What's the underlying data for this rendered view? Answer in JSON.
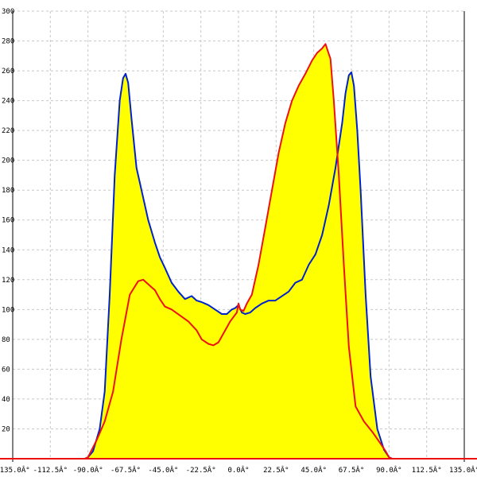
{
  "chart_data": {
    "type": "area",
    "title": "",
    "xlabel": "",
    "ylabel": "",
    "xlim": [
      -135,
      135
    ],
    "ylim": [
      0,
      300
    ],
    "grid": true,
    "x_ticks": [
      {
        "value": -135.0,
        "label": "-135.0Â°"
      },
      {
        "value": -112.5,
        "label": "-112.5Â°"
      },
      {
        "value": -90.0,
        "label": "-90.0Â°"
      },
      {
        "value": -67.5,
        "label": "-67.5Â°"
      },
      {
        "value": -45.0,
        "label": "-45.0Â°"
      },
      {
        "value": -22.5,
        "label": "-22.5Â°"
      },
      {
        "value": 0.0,
        "label": "0.0Â°"
      },
      {
        "value": 22.5,
        "label": "22.5Â°"
      },
      {
        "value": 45.0,
        "label": "45.0Â°"
      },
      {
        "value": 67.5,
        "label": "67.5Â°"
      },
      {
        "value": 90.0,
        "label": "90.0Â°"
      },
      {
        "value": 112.5,
        "label": "112.5Â°"
      },
      {
        "value": 135.0,
        "label": "135.0Â°"
      }
    ],
    "y_ticks": [
      {
        "value": 20,
        "label": "20"
      },
      {
        "value": 40,
        "label": "40"
      },
      {
        "value": 60,
        "label": "60"
      },
      {
        "value": 80,
        "label": "80"
      },
      {
        "value": 100,
        "label": "100"
      },
      {
        "value": 120,
        "label": "120"
      },
      {
        "value": 140,
        "label": "140"
      },
      {
        "value": 160,
        "label": "160"
      },
      {
        "value": 180,
        "label": "180"
      },
      {
        "value": 200,
        "label": "200"
      },
      {
        "value": 220,
        "label": "220"
      },
      {
        "value": 240,
        "label": "240"
      },
      {
        "value": 260,
        "label": "260"
      },
      {
        "value": 280,
        "label": "280"
      },
      {
        "value": 300,
        "label": "300"
      }
    ],
    "colors": {
      "fill": "#ffff00",
      "blue_series": "#0022cc",
      "red_series": "#ee1111",
      "grid": "#c8c8c8",
      "axis": "#000000"
    },
    "series": [
      {
        "color": "blue",
        "x": [
          -135,
          -92,
          -90,
          -87,
          -83,
          -80,
          -77,
          -74,
          -71,
          -69,
          -67.5,
          -66,
          -64,
          -61,
          -58,
          -54,
          -50,
          -47,
          -44,
          -40,
          -36,
          -32,
          -28,
          -25,
          -22,
          -18,
          -14,
          -10,
          -7,
          -4,
          -2,
          0,
          2,
          4,
          7,
          10,
          14,
          18,
          22,
          26,
          30,
          34,
          38,
          42,
          46,
          50,
          54,
          58,
          62,
          64,
          66,
          67.5,
          69,
          71,
          73,
          76,
          79,
          83,
          87,
          90,
          92,
          135
        ],
        "y": [
          0,
          0,
          1,
          5,
          20,
          45,
          110,
          190,
          240,
          255,
          258,
          252,
          228,
          195,
          180,
          160,
          145,
          135,
          128,
          118,
          112,
          107,
          109,
          106,
          105,
          103,
          100,
          97,
          97,
          100,
          101,
          103,
          98,
          97,
          98,
          101,
          104,
          106,
          106,
          109,
          112,
          118,
          120,
          130,
          137,
          150,
          170,
          195,
          225,
          245,
          257,
          259,
          250,
          220,
          180,
          110,
          55,
          20,
          6,
          1,
          0,
          0
        ]
      },
      {
        "color": "red",
        "x": [
          -135,
          -92,
          -90,
          -85,
          -80,
          -75,
          -70,
          -65,
          -60,
          -57,
          -55,
          -52,
          -50,
          -47,
          -44,
          -40,
          -35,
          -30,
          -25,
          -22,
          -18,
          -15,
          -12,
          -10,
          -7,
          -5,
          -3,
          -1,
          0,
          1,
          3,
          5,
          8,
          12,
          16,
          20,
          24,
          28,
          32,
          36,
          40,
          44,
          47,
          50,
          52,
          55,
          57,
          60,
          63,
          66,
          70,
          75,
          80,
          85,
          88,
          90,
          92,
          135
        ],
        "y": [
          0,
          0,
          1,
          12,
          25,
          45,
          80,
          110,
          119,
          120,
          118,
          115,
          113,
          107,
          102,
          100,
          96,
          92,
          86,
          80,
          77,
          76,
          78,
          82,
          88,
          92,
          95,
          98,
          104,
          100,
          99,
          104,
          110,
          130,
          155,
          180,
          205,
          225,
          240,
          250,
          258,
          267,
          272,
          275,
          278,
          268,
          240,
          190,
          130,
          75,
          35,
          25,
          18,
          10,
          5,
          1,
          0,
          0
        ]
      }
    ]
  }
}
